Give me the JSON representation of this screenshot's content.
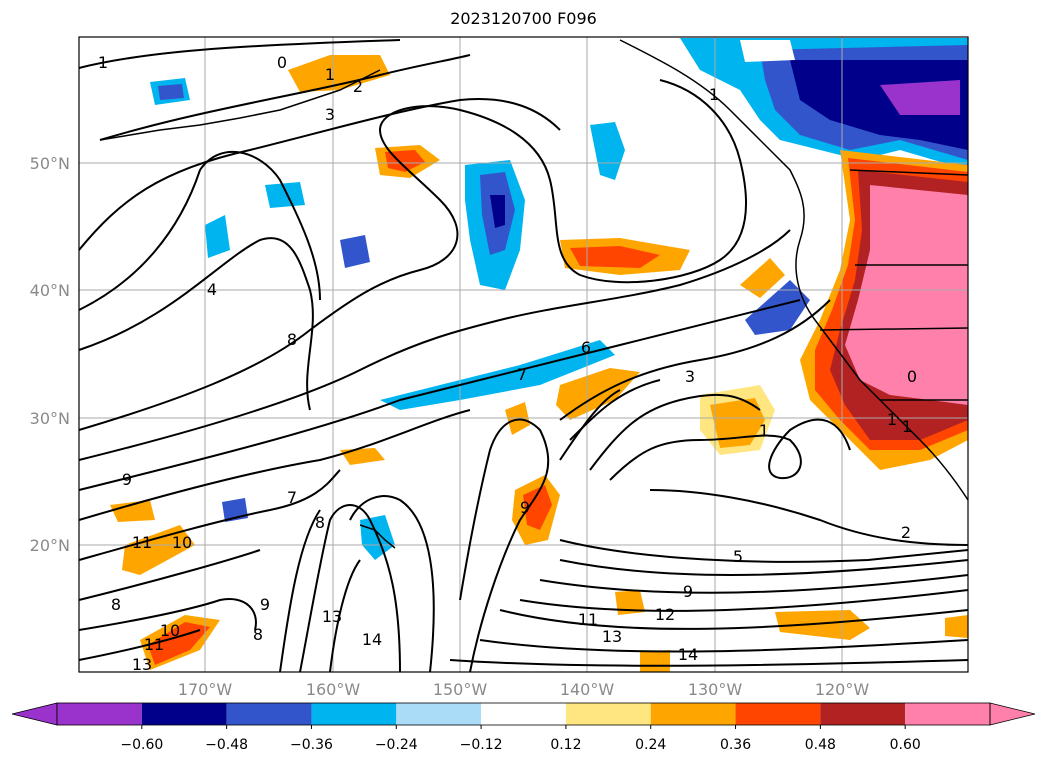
{
  "title": "2023120700 F096",
  "map": {
    "lat_labels": [
      "50°N",
      "40°N",
      "30°N",
      "20°N"
    ],
    "lon_labels": [
      "170°W",
      "160°W",
      "150°W",
      "140°W",
      "130°W",
      "120°W"
    ],
    "contour_labels": [
      "1",
      "0",
      "1",
      "2",
      "3",
      "1",
      "4",
      "8",
      "6",
      "7",
      "3",
      "1",
      "9",
      "7",
      "8",
      "11",
      "10",
      "9",
      "1",
      "0",
      "1",
      "9",
      "2",
      "5",
      "9",
      "8",
      "13",
      "14",
      "12",
      "11",
      "13",
      "14",
      "10",
      "11",
      "13",
      "8"
    ]
  },
  "colorbar": {
    "ticks": [
      "−0.60",
      "−0.48",
      "−0.36",
      "−0.24",
      "−0.12",
      "0.12",
      "0.24",
      "0.36",
      "0.48",
      "0.60"
    ],
    "colors": [
      "#9933cc",
      "#00008b",
      "#3355cc",
      "#00b4f0",
      "#aadcf8",
      "#ffffff",
      "#ffe680",
      "#ffa500",
      "#ff4500",
      "#b22222",
      "#ff80aa",
      "#ff80aa"
    ]
  }
}
